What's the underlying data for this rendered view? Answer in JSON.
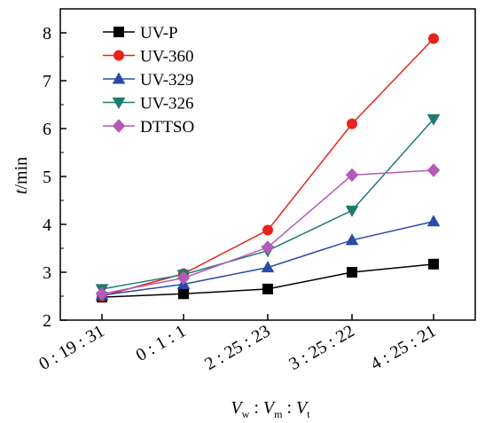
{
  "chart_data": {
    "type": "line",
    "categories": [
      "0 : 19 : 31",
      "0 : 1 : 1",
      "2 : 25 : 23",
      "3 : 25 : 22",
      "4 : 25 : 21"
    ],
    "series": [
      {
        "name": "UV-P",
        "values": [
          2.48,
          2.55,
          2.65,
          3.0,
          3.17
        ],
        "color": "#000000",
        "marker": "square"
      },
      {
        "name": "UV-360",
        "values": [
          2.5,
          2.97,
          3.88,
          6.1,
          7.88
        ],
        "color": "#e8231c",
        "marker": "circle"
      },
      {
        "name": "UV-329",
        "values": [
          2.52,
          2.75,
          3.1,
          3.67,
          4.06
        ],
        "color": "#2a4aa8",
        "marker": "triangle-up"
      },
      {
        "name": "UV-326",
        "values": [
          2.65,
          2.95,
          3.45,
          4.29,
          6.2
        ],
        "color": "#1f7b72",
        "marker": "triangle-down"
      },
      {
        "name": "DTTSO",
        "values": [
          2.55,
          2.88,
          3.52,
          5.03,
          5.13
        ],
        "color": "#b55ab8",
        "marker": "diamond"
      }
    ],
    "ylim": [
      2,
      8.5
    ],
    "yticks": [
      2,
      3,
      4,
      5,
      6,
      7,
      8
    ],
    "ylabel": {
      "var": "t",
      "unit": "/min"
    },
    "xlabel": {
      "v": "V",
      "w": "w",
      "m": "m",
      "t": "t",
      "sep": " : "
    },
    "legend": "top-left",
    "grid": false
  }
}
